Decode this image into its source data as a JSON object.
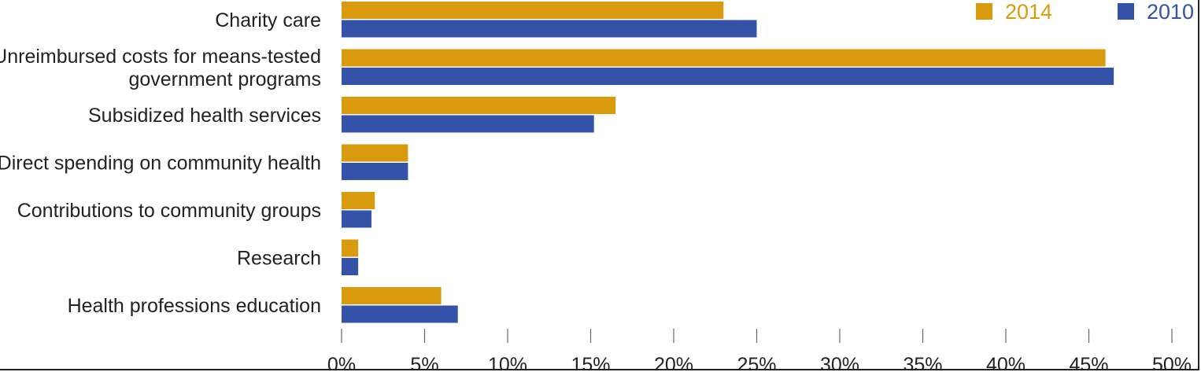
{
  "chart_data": {
    "type": "bar",
    "orientation": "horizontal",
    "title": "",
    "xlabel": "",
    "ylabel": "",
    "categories": [
      [
        "Charity care"
      ],
      [
        "Unreimbursed costs for means-tested",
        "government programs"
      ],
      [
        "Subsidized health services"
      ],
      [
        "Direct spending on community health"
      ],
      [
        "Contributions to community groups"
      ],
      [
        "Research"
      ],
      [
        "Health professions education"
      ]
    ],
    "series": [
      {
        "name": "2014",
        "color": "#D99A0E",
        "values": [
          23,
          46,
          16.5,
          4,
          2,
          1,
          6
        ]
      },
      {
        "name": "2010",
        "color": "#3452A8",
        "values": [
          25,
          46.5,
          15.2,
          4,
          1.8,
          1,
          7
        ]
      }
    ],
    "xlim": [
      0,
      50
    ],
    "xticks": [
      0,
      5,
      10,
      15,
      20,
      25,
      30,
      35,
      40,
      45,
      50
    ],
    "tick_format": "{v}%",
    "grid": false,
    "legend_position": "top-right"
  }
}
